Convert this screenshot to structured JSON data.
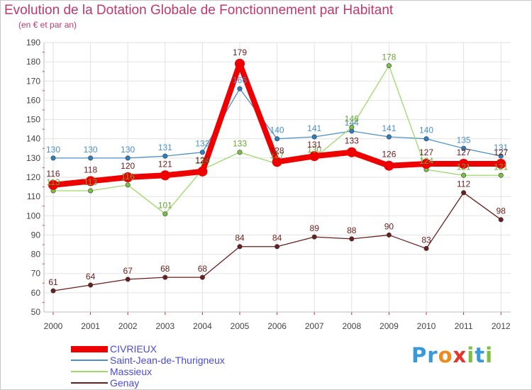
{
  "header": {
    "title": "Evolution de la Dotation Globale de Fonctionnement par Habitant",
    "subtitle": "(en € et par an)"
  },
  "logo": {
    "letters": [
      {
        "ch": "P",
        "color": "#3a9ad9"
      },
      {
        "ch": "r",
        "color": "#3a9ad9"
      },
      {
        "ch": "o",
        "color": "#f08a1c"
      },
      {
        "ch": "x",
        "color": "#e8332a"
      },
      {
        "ch": "i",
        "color": "#7cc043"
      },
      {
        "ch": "t",
        "color": "#3a9ad9"
      },
      {
        "ch": "i",
        "color": "#7cc043"
      }
    ]
  },
  "colors": {
    "title": "#c0386c",
    "axis": "#bdbdbd",
    "grid": "#e2e2e2",
    "label": "#444444",
    "tick_marker": "#cc2222"
  },
  "chart_data": {
    "type": "line",
    "x": [
      2000,
      2001,
      2002,
      2003,
      2004,
      2005,
      2006,
      2007,
      2008,
      2009,
      2010,
      2011,
      2012
    ],
    "ylim": [
      50,
      190
    ],
    "yticks": [
      50,
      60,
      70,
      80,
      90,
      100,
      110,
      120,
      130,
      140,
      150,
      160,
      170,
      180,
      190
    ],
    "grid": true,
    "legend": "bottom-left",
    "series": [
      {
        "name": "Saint-Jean-de-Thurigneux",
        "color": "#4a90c8",
        "marker": "#2f7ec0",
        "label_color": "#4a90c8",
        "width": 1.3,
        "values": [
          130,
          130,
          130,
          131,
          133,
          166,
          140,
          141,
          144,
          141,
          140,
          135,
          131
        ]
      },
      {
        "name": "Massieux",
        "color": "#9ed96a",
        "marker": "#7cc043",
        "label_color": "#6aa83a",
        "width": 1.3,
        "values": [
          113,
          113,
          116,
          101,
          124,
          133,
          127,
          130,
          146,
          178,
          124,
          121,
          121
        ]
      },
      {
        "name": "Genay",
        "color": "#6b1e1e",
        "marker": "#6b1e1e",
        "label_color": "#6b1e1e",
        "width": 1.3,
        "values": [
          61,
          64,
          67,
          68,
          68,
          84,
          84,
          89,
          88,
          90,
          83,
          112,
          98
        ]
      },
      {
        "name": "CIVRIEUX",
        "color": "#ee0000",
        "marker": "#ee0000",
        "label_color": "#6b1e1e",
        "width": 8,
        "values": [
          116,
          118,
          120,
          121,
          123,
          179,
          128,
          131,
          133,
          126,
          127,
          127,
          127
        ]
      }
    ]
  },
  "legend": {
    "items": [
      {
        "label": "CIVRIEUX",
        "color": "#ee0000",
        "text_color": "#4a4adf",
        "thickness": 9
      },
      {
        "label": "Saint-Jean-de-Thurigneux",
        "color": "#4a90c8",
        "text_color": "#4a4adf",
        "thickness": 2
      },
      {
        "label": "Massieux",
        "color": "#9ed96a",
        "text_color": "#4a4adf",
        "thickness": 2
      },
      {
        "label": "Genay",
        "color": "#6b1e1e",
        "text_color": "#4a4adf",
        "thickness": 2
      }
    ]
  }
}
